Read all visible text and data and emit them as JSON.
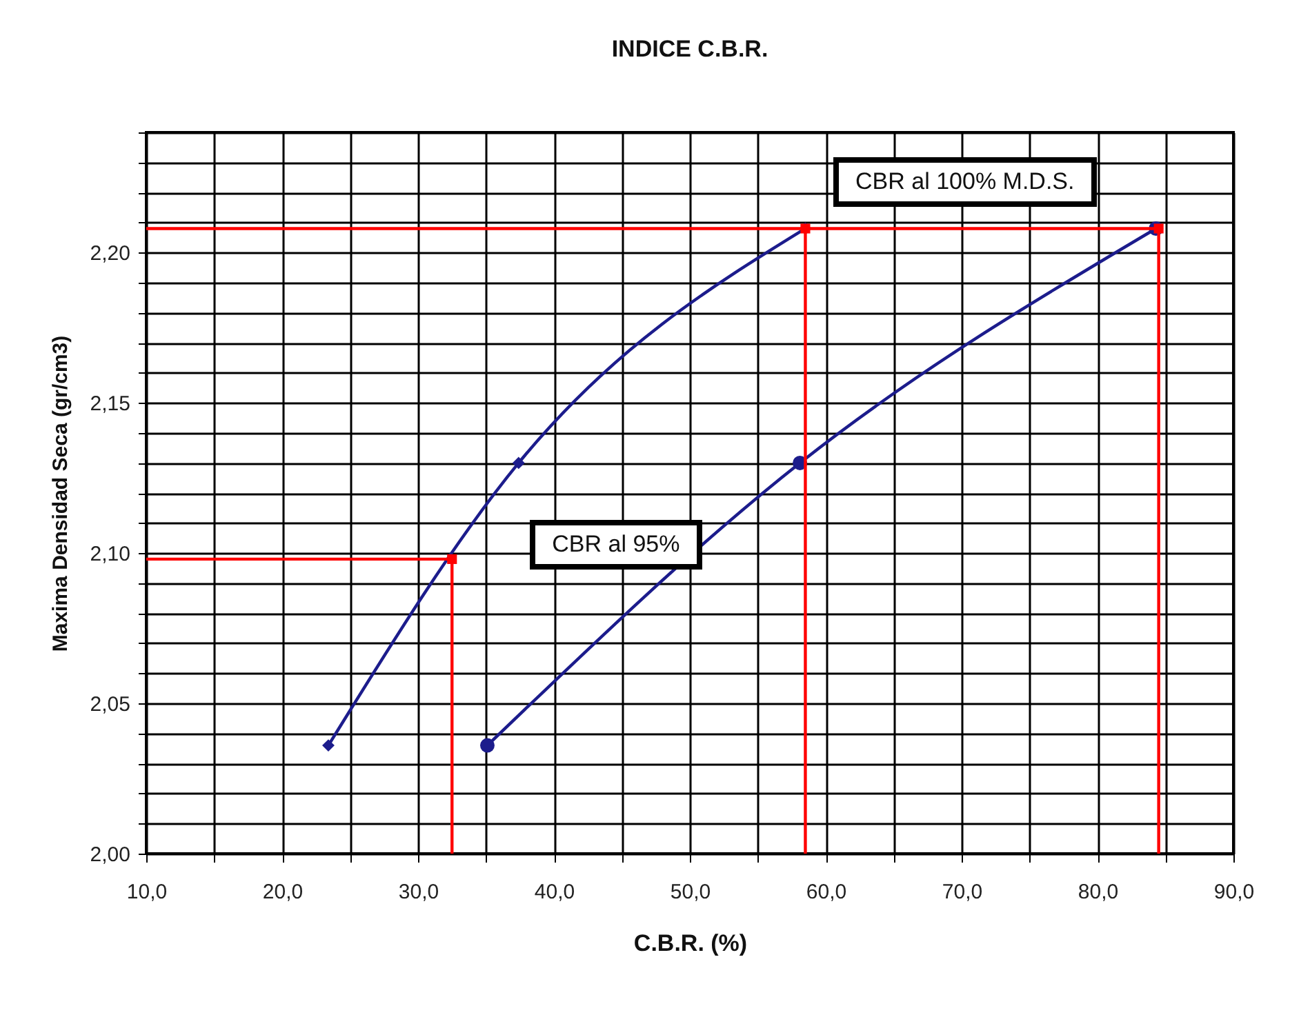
{
  "chart_data": {
    "type": "line",
    "title": "INDICE C.B.R.",
    "xlabel": "C.B.R. (%)",
    "ylabel": "Maxima Densidad Seca (gr/cm3)",
    "xlim": [
      10,
      90
    ],
    "xticks": [
      {
        "value": 10,
        "label": "10,0"
      },
      {
        "value": 15,
        "label": null
      },
      {
        "value": 20,
        "label": "20,0"
      },
      {
        "value": 25,
        "label": null
      },
      {
        "value": 30,
        "label": "30,0"
      },
      {
        "value": 35,
        "label": null
      },
      {
        "value": 40,
        "label": "40,0"
      },
      {
        "value": 45,
        "label": null
      },
      {
        "value": 50,
        "label": "50,0"
      },
      {
        "value": 55,
        "label": null
      },
      {
        "value": 60,
        "label": "60,0"
      },
      {
        "value": 65,
        "label": null
      },
      {
        "value": 70,
        "label": "70,0"
      },
      {
        "value": 75,
        "label": null
      },
      {
        "value": 80,
        "label": "80,0"
      },
      {
        "value": 85,
        "label": null
      },
      {
        "value": 90,
        "label": "90,0"
      }
    ],
    "ylim": [
      2.0,
      2.24
    ],
    "yticks": [
      {
        "value": 2.0,
        "label": "2,00"
      },
      {
        "value": 2.01,
        "label": null
      },
      {
        "value": 2.02,
        "label": null
      },
      {
        "value": 2.03,
        "label": null
      },
      {
        "value": 2.04,
        "label": null
      },
      {
        "value": 2.05,
        "label": "2,05"
      },
      {
        "value": 2.06,
        "label": null
      },
      {
        "value": 2.07,
        "label": null
      },
      {
        "value": 2.08,
        "label": null
      },
      {
        "value": 2.09,
        "label": null
      },
      {
        "value": 2.1,
        "label": "2,10"
      },
      {
        "value": 2.11,
        "label": null
      },
      {
        "value": 2.12,
        "label": null
      },
      {
        "value": 2.13,
        "label": null
      },
      {
        "value": 2.14,
        "label": null
      },
      {
        "value": 2.15,
        "label": "2,15"
      },
      {
        "value": 2.16,
        "label": null
      },
      {
        "value": 2.17,
        "label": null
      },
      {
        "value": 2.18,
        "label": null
      },
      {
        "value": 2.19,
        "label": null
      },
      {
        "value": 2.2,
        "label": "2,20"
      },
      {
        "value": 2.21,
        "label": null
      },
      {
        "value": 2.22,
        "label": null
      },
      {
        "value": 2.23,
        "label": null
      },
      {
        "value": 2.24,
        "label": null
      }
    ],
    "grid": true,
    "series": [
      {
        "color": "#1c1c8c",
        "marker": "diamond",
        "x": [
          23.4,
          37.4,
          58.5
        ],
        "values": [
          2.036,
          2.13,
          2.208
        ]
      },
      {
        "color": "#1c1c8c",
        "marker": "circle",
        "x": [
          35.1,
          58.1,
          84.3
        ],
        "values": [
          2.036,
          2.13,
          2.208
        ]
      },
      {
        "color": "#ff0000",
        "marker": "none",
        "x": [
          10,
          32.5,
          32.5
        ],
        "values": [
          2.098,
          2.098,
          2.0
        ]
      },
      {
        "color": "#ff0000",
        "marker": "none",
        "x": [
          10,
          84.5,
          84.5
        ],
        "values": [
          2.208,
          2.208,
          2.0
        ]
      },
      {
        "color": "#ff0000",
        "marker": "none",
        "x": [
          58.5,
          58.5
        ],
        "values": [
          2.208,
          2.0
        ]
      },
      {
        "type": "scatter",
        "color": "#ff0000",
        "marker": "square",
        "x": [
          32.5,
          58.5,
          84.5
        ],
        "values": [
          2.098,
          2.208,
          2.208
        ]
      }
    ],
    "annotations": [
      "CBR al 100%  M.D.S.",
      "CBR al 95%"
    ]
  }
}
